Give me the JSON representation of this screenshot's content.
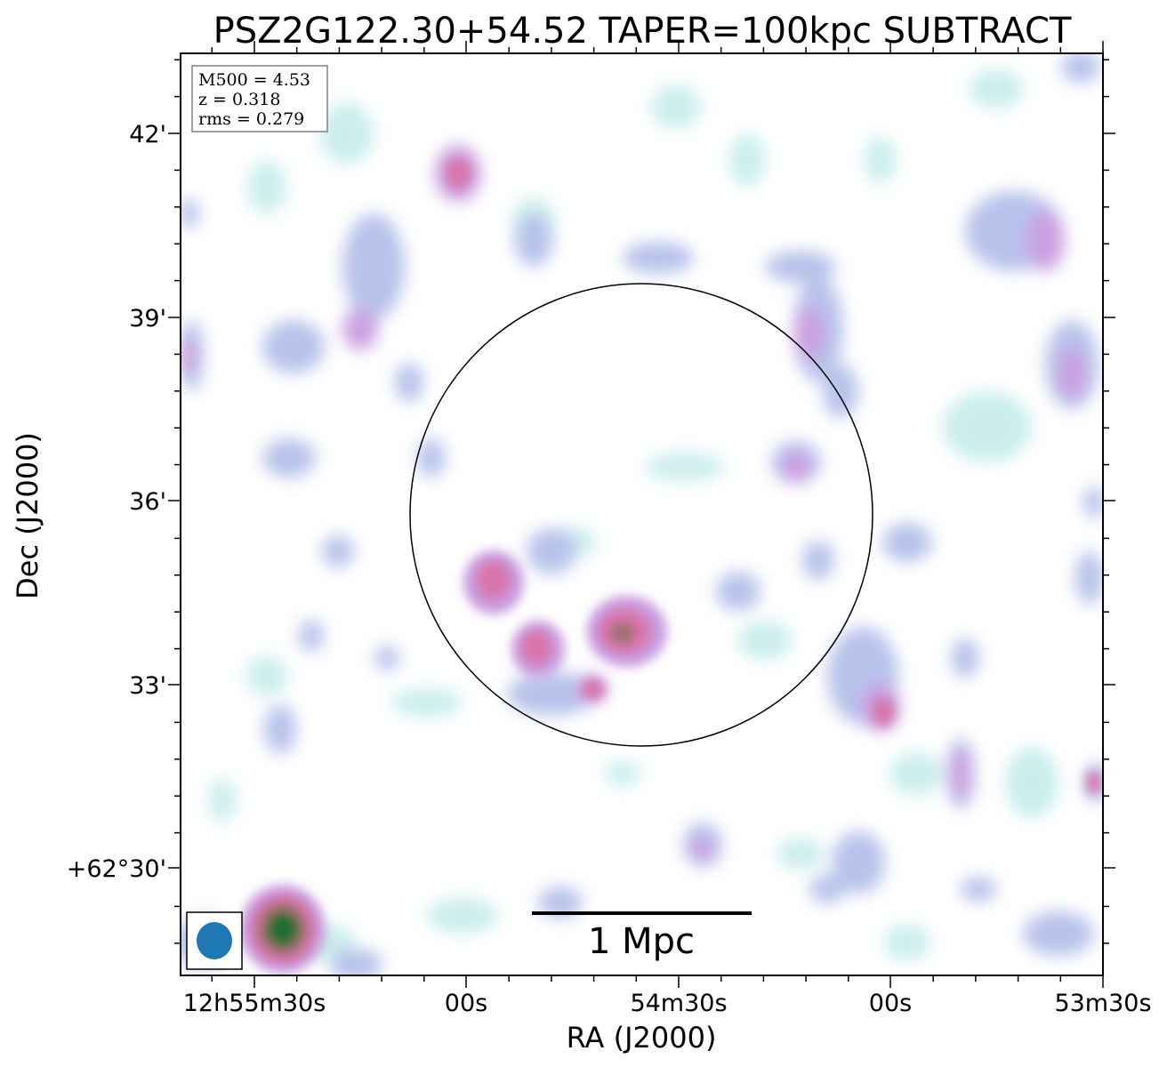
{
  "title": "PSZ2G122.30+54.52 TAPER=100kpc SUBTRACT",
  "info_box": {
    "mass": "M500 = 4.53",
    "redshift": "z = 0.318",
    "rms": "rms = 0.279"
  },
  "x_axis": {
    "label": "RA (J2000)",
    "ticks": [
      "12h55m30s",
      "00s",
      "54m30s",
      "00s",
      "53m30s"
    ]
  },
  "y_axis": {
    "label": "Dec (J2000)",
    "ticks": [
      "42'",
      "39'",
      "36'",
      "33'",
      "+62°30'"
    ]
  },
  "scale_bar": {
    "label": "1 Mpc"
  },
  "colors": {
    "faint": "#c9ecec",
    "low": "#b4c0ea",
    "mid": "#c89be0",
    "high": "#d874ac",
    "peak": "#9c7068",
    "core": "#1e6e30",
    "beam": "#1f77b4"
  }
}
